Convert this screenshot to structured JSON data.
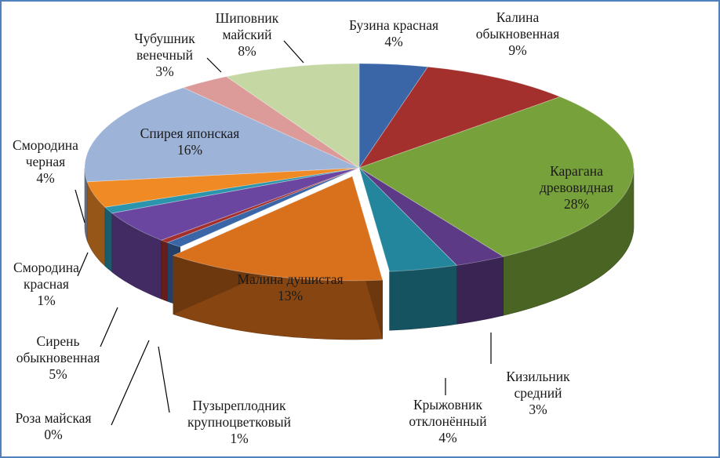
{
  "chart_data": {
    "type": "pie",
    "title": "",
    "style": "3d-exploded",
    "legend": "none",
    "slices": [
      {
        "label": "Бузина красная",
        "lines": [
          "Бузина красная",
          "4%"
        ],
        "value": 4,
        "color": "#3a66a8"
      },
      {
        "label": "Калина обыкновенная",
        "lines": [
          "Калина",
          "обыкновенная",
          "9%"
        ],
        "value": 9,
        "color": "#a3302c"
      },
      {
        "label": "Карагана древовидная",
        "lines": [
          "Карагана",
          "древовидная",
          "28%"
        ],
        "value": 28,
        "color": "#77a13a"
      },
      {
        "label": "Кизильник средний",
        "lines": [
          "Кизильник",
          "средний",
          "3%"
        ],
        "value": 3,
        "color": "#5d3a86"
      },
      {
        "label": "Крыжовник отклонённый",
        "lines": [
          "Крыжовник",
          "отклонённый",
          "4%"
        ],
        "value": 4,
        "color": "#24869c"
      },
      {
        "label": "Малина душистая",
        "lines": [
          "Малина душистая",
          "13%"
        ],
        "value": 13,
        "color": "#d9701c"
      },
      {
        "label": "Пузыреплодник крупноцветковый",
        "lines": [
          "Пузыреплодник",
          "крупноцветковый",
          "1%"
        ],
        "value": 1,
        "color": "#3a66a8"
      },
      {
        "label": "Роза майская",
        "lines": [
          "Роза майская",
          "0%"
        ],
        "value": 0.5,
        "color": "#a3302c"
      },
      {
        "label": "Сирень обыкновенная",
        "lines": [
          "Сирень",
          "обыкновенная",
          "5%"
        ],
        "value": 5,
        "color": "#6b46a0"
      },
      {
        "label": "Смородина красная",
        "lines": [
          "Смородина",
          "красная",
          "1%"
        ],
        "value": 1,
        "color": "#2a95ad"
      },
      {
        "label": "Смородина черная",
        "lines": [
          "Смородина",
          "черная",
          "4%"
        ],
        "value": 4,
        "color": "#f08a25"
      },
      {
        "label": "Спирея японская",
        "lines": [
          "Спирея японская",
          "16%"
        ],
        "value": 16,
        "color": "#9db3d8"
      },
      {
        "label": "Чубушник венечный",
        "lines": [
          "Чубушник",
          "венечный",
          "3%"
        ],
        "value": 3,
        "color": "#dc9a98"
      },
      {
        "label": "Шиповник майский",
        "lines": [
          "Шиповник",
          "майский",
          "8%"
        ],
        "value": 8,
        "color": "#c5d7a3"
      }
    ]
  }
}
